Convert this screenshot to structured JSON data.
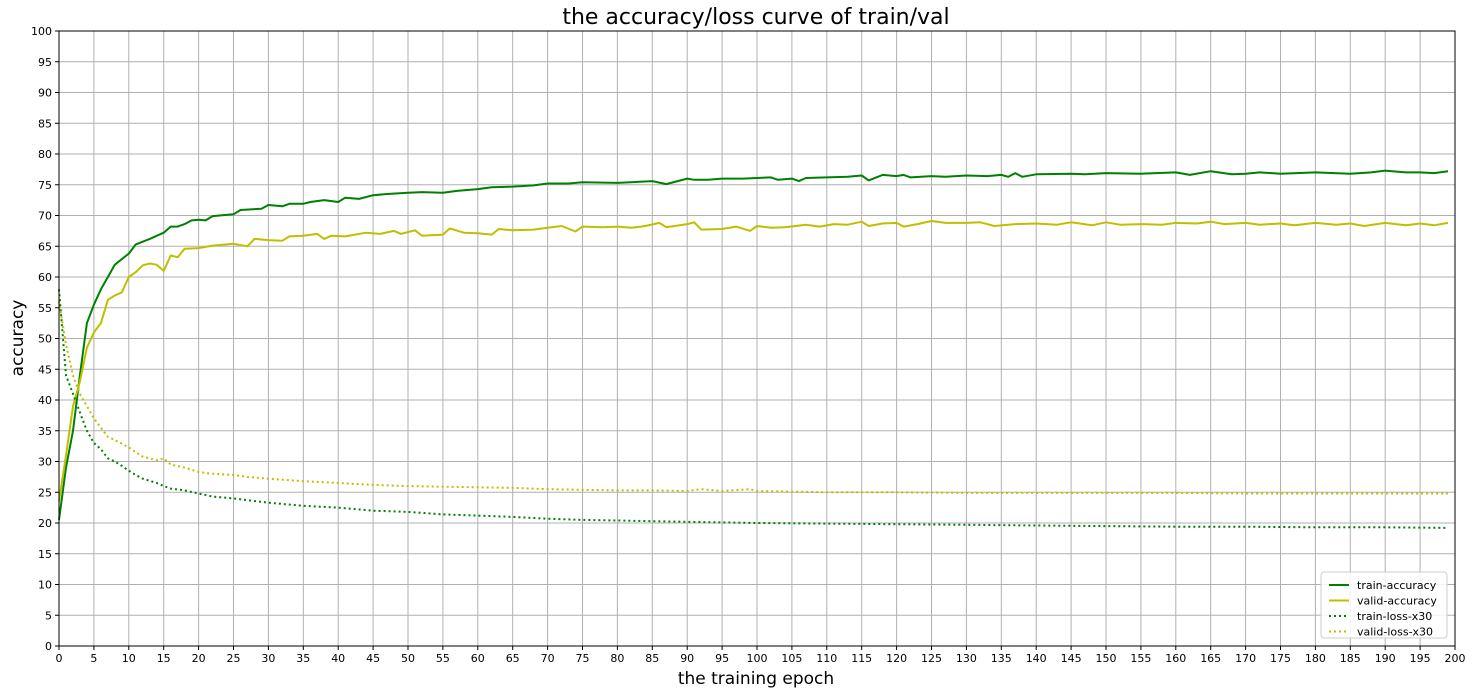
{
  "chart_data": {
    "type": "line",
    "title": "the accuracy/loss curve of train/val",
    "xlabel": "the training epoch",
    "ylabel": "accuracy",
    "xlim": [
      0,
      200
    ],
    "ylim": [
      0,
      100
    ],
    "xticks": [
      0,
      5,
      10,
      15,
      20,
      25,
      30,
      35,
      40,
      45,
      50,
      55,
      60,
      65,
      70,
      75,
      80,
      85,
      90,
      95,
      100,
      105,
      110,
      115,
      120,
      125,
      130,
      135,
      140,
      145,
      150,
      155,
      160,
      165,
      170,
      175,
      180,
      185,
      190,
      195,
      200
    ],
    "yticks": [
      0,
      5,
      10,
      15,
      20,
      25,
      30,
      35,
      40,
      45,
      50,
      55,
      60,
      65,
      70,
      75,
      80,
      85,
      90,
      95,
      100
    ],
    "grid": true,
    "legend_position": "lower right",
    "series": [
      {
        "name": "train-accuracy",
        "color": "#008000",
        "style": "solid",
        "points": [
          [
            0,
            20.5
          ],
          [
            1,
            29
          ],
          [
            2,
            35
          ],
          [
            3,
            44
          ],
          [
            4,
            52.5
          ],
          [
            5,
            55.5
          ],
          [
            6,
            58
          ],
          [
            7,
            60
          ],
          [
            8,
            62
          ],
          [
            10,
            63.8
          ],
          [
            11,
            65.3
          ],
          [
            13,
            66.2
          ],
          [
            15,
            67.2
          ],
          [
            16,
            68.2
          ],
          [
            17,
            68.2
          ],
          [
            18,
            68.6
          ],
          [
            19,
            69.2
          ],
          [
            20,
            69.3
          ],
          [
            21,
            69.2
          ],
          [
            22,
            69.9
          ],
          [
            25,
            70.2
          ],
          [
            26,
            70.9
          ],
          [
            29,
            71.1
          ],
          [
            30,
            71.7
          ],
          [
            32,
            71.5
          ],
          [
            33,
            71.9
          ],
          [
            35,
            71.9
          ],
          [
            36,
            72.2
          ],
          [
            38,
            72.5
          ],
          [
            40,
            72.2
          ],
          [
            41,
            72.9
          ],
          [
            43,
            72.7
          ],
          [
            45,
            73.3
          ],
          [
            47,
            73.5
          ],
          [
            50,
            73.7
          ],
          [
            52,
            73.8
          ],
          [
            55,
            73.7
          ],
          [
            57,
            74
          ],
          [
            60,
            74.3
          ],
          [
            62,
            74.6
          ],
          [
            65,
            74.7
          ],
          [
            68,
            74.9
          ],
          [
            70,
            75.2
          ],
          [
            73,
            75.2
          ],
          [
            75,
            75.4
          ],
          [
            80,
            75.3
          ],
          [
            85,
            75.6
          ],
          [
            87,
            75.1
          ],
          [
            90,
            76
          ],
          [
            91,
            75.8
          ],
          [
            93,
            75.8
          ],
          [
            95,
            76
          ],
          [
            98,
            76
          ],
          [
            100,
            76.1
          ],
          [
            102,
            76.2
          ],
          [
            103,
            75.8
          ],
          [
            105,
            76
          ],
          [
            106,
            75.6
          ],
          [
            107,
            76.1
          ],
          [
            110,
            76.2
          ],
          [
            113,
            76.3
          ],
          [
            115,
            76.5
          ],
          [
            116,
            75.7
          ],
          [
            118,
            76.6
          ],
          [
            120,
            76.4
          ],
          [
            121,
            76.6
          ],
          [
            122,
            76.2
          ],
          [
            125,
            76.4
          ],
          [
            127,
            76.3
          ],
          [
            130,
            76.5
          ],
          [
            133,
            76.4
          ],
          [
            135,
            76.6
          ],
          [
            136,
            76.3
          ],
          [
            137,
            76.9
          ],
          [
            138,
            76.3
          ],
          [
            140,
            76.7
          ],
          [
            145,
            76.8
          ],
          [
            147,
            76.7
          ],
          [
            150,
            76.9
          ],
          [
            155,
            76.8
          ],
          [
            160,
            77
          ],
          [
            162,
            76.6
          ],
          [
            165,
            77.2
          ],
          [
            168,
            76.7
          ],
          [
            170,
            76.8
          ],
          [
            172,
            77
          ],
          [
            175,
            76.8
          ],
          [
            180,
            77
          ],
          [
            185,
            76.8
          ],
          [
            188,
            77
          ],
          [
            190,
            77.3
          ],
          [
            193,
            77
          ],
          [
            195,
            77
          ],
          [
            197,
            76.9
          ],
          [
            199,
            77.2
          ]
        ]
      },
      {
        "name": "valid-accuracy",
        "color": "#bfbf00",
        "style": "solid",
        "points": [
          [
            0,
            23.5
          ],
          [
            1,
            31
          ],
          [
            2,
            39
          ],
          [
            3,
            43
          ],
          [
            4,
            48.5
          ],
          [
            5,
            51
          ],
          [
            6,
            52.5
          ],
          [
            7,
            56.3
          ],
          [
            8,
            57
          ],
          [
            9,
            57.5
          ],
          [
            10,
            60
          ],
          [
            11,
            60.8
          ],
          [
            12,
            61.9
          ],
          [
            13,
            62.2
          ],
          [
            14,
            62
          ],
          [
            15,
            61
          ],
          [
            16,
            63.5
          ],
          [
            17,
            63.2
          ],
          [
            18,
            64.6
          ],
          [
            20,
            64.7
          ],
          [
            22,
            65.1
          ],
          [
            24,
            65.3
          ],
          [
            25,
            65.4
          ],
          [
            27,
            65
          ],
          [
            28,
            66.2
          ],
          [
            30,
            66
          ],
          [
            32,
            65.9
          ],
          [
            33,
            66.6
          ],
          [
            35,
            66.7
          ],
          [
            37,
            67
          ],
          [
            38,
            66.2
          ],
          [
            39,
            66.7
          ],
          [
            41,
            66.6
          ],
          [
            44,
            67.2
          ],
          [
            46,
            67
          ],
          [
            48,
            67.5
          ],
          [
            49,
            67
          ],
          [
            51,
            67.6
          ],
          [
            52,
            66.7
          ],
          [
            55,
            66.9
          ],
          [
            56,
            67.9
          ],
          [
            58,
            67.2
          ],
          [
            60,
            67.1
          ],
          [
            62,
            66.9
          ],
          [
            63,
            67.8
          ],
          [
            65,
            67.6
          ],
          [
            68,
            67.7
          ],
          [
            70,
            68
          ],
          [
            72,
            68.3
          ],
          [
            74,
            67.4
          ],
          [
            75,
            68.2
          ],
          [
            78,
            68.1
          ],
          [
            80,
            68.2
          ],
          [
            82,
            68
          ],
          [
            84,
            68.3
          ],
          [
            86,
            68.8
          ],
          [
            87,
            68.1
          ],
          [
            90,
            68.6
          ],
          [
            91,
            68.9
          ],
          [
            92,
            67.7
          ],
          [
            95,
            67.8
          ],
          [
            97,
            68.2
          ],
          [
            99,
            67.5
          ],
          [
            100,
            68.3
          ],
          [
            102,
            68
          ],
          [
            104,
            68.1
          ],
          [
            107,
            68.5
          ],
          [
            109,
            68.2
          ],
          [
            111,
            68.6
          ],
          [
            113,
            68.5
          ],
          [
            115,
            69
          ],
          [
            116,
            68.3
          ],
          [
            118,
            68.7
          ],
          [
            120,
            68.8
          ],
          [
            121,
            68.2
          ],
          [
            123,
            68.6
          ],
          [
            125,
            69.1
          ],
          [
            127,
            68.8
          ],
          [
            130,
            68.8
          ],
          [
            132,
            68.9
          ],
          [
            134,
            68.3
          ],
          [
            137,
            68.6
          ],
          [
            140,
            68.7
          ],
          [
            143,
            68.5
          ],
          [
            145,
            68.9
          ],
          [
            148,
            68.4
          ],
          [
            150,
            68.9
          ],
          [
            152,
            68.5
          ],
          [
            155,
            68.6
          ],
          [
            158,
            68.5
          ],
          [
            160,
            68.8
          ],
          [
            163,
            68.7
          ],
          [
            165,
            69
          ],
          [
            167,
            68.6
          ],
          [
            170,
            68.8
          ],
          [
            172,
            68.5
          ],
          [
            175,
            68.7
          ],
          [
            177,
            68.4
          ],
          [
            180,
            68.8
          ],
          [
            183,
            68.5
          ],
          [
            185,
            68.7
          ],
          [
            187,
            68.3
          ],
          [
            190,
            68.8
          ],
          [
            193,
            68.4
          ],
          [
            195,
            68.7
          ],
          [
            197,
            68.4
          ],
          [
            199,
            68.8
          ]
        ]
      },
      {
        "name": "train-loss-x30",
        "color": "#008000",
        "style": "dotted",
        "points": [
          [
            0,
            58
          ],
          [
            1,
            44
          ],
          [
            2,
            41
          ],
          [
            3,
            38
          ],
          [
            4,
            35
          ],
          [
            5,
            33
          ],
          [
            6,
            32
          ],
          [
            7,
            30.5
          ],
          [
            8,
            30
          ],
          [
            9,
            29.3
          ],
          [
            10,
            28.5
          ],
          [
            11,
            27.8
          ],
          [
            12,
            27.2
          ],
          [
            14,
            26.5
          ],
          [
            15,
            26
          ],
          [
            16,
            25.6
          ],
          [
            18,
            25.3
          ],
          [
            20,
            24.8
          ],
          [
            22,
            24.3
          ],
          [
            25,
            24
          ],
          [
            27,
            23.7
          ],
          [
            30,
            23.3
          ],
          [
            35,
            22.8
          ],
          [
            40,
            22.5
          ],
          [
            45,
            22
          ],
          [
            50,
            21.8
          ],
          [
            55,
            21.4
          ],
          [
            60,
            21.2
          ],
          [
            65,
            21
          ],
          [
            70,
            20.7
          ],
          [
            75,
            20.5
          ],
          [
            80,
            20.4
          ],
          [
            85,
            20.3
          ],
          [
            90,
            20.2
          ],
          [
            95,
            20.1
          ],
          [
            100,
            20
          ],
          [
            110,
            19.9
          ],
          [
            120,
            19.8
          ],
          [
            130,
            19.7
          ],
          [
            140,
            19.6
          ],
          [
            150,
            19.5
          ],
          [
            160,
            19.4
          ],
          [
            170,
            19.4
          ],
          [
            180,
            19.3
          ],
          [
            190,
            19.3
          ],
          [
            199,
            19.2
          ]
        ]
      },
      {
        "name": "valid-loss-x30",
        "color": "#bfbf00",
        "style": "dotted",
        "points": [
          [
            0,
            56
          ],
          [
            1,
            49
          ],
          [
            2,
            44
          ],
          [
            3,
            41
          ],
          [
            4,
            39
          ],
          [
            5,
            37
          ],
          [
            6,
            35.5
          ],
          [
            7,
            34
          ],
          [
            8,
            33.5
          ],
          [
            10,
            32.3
          ],
          [
            11,
            31.5
          ],
          [
            12,
            30.8
          ],
          [
            14,
            30.2
          ],
          [
            15,
            30.5
          ],
          [
            16,
            29.5
          ],
          [
            18,
            29
          ],
          [
            20,
            28.3
          ],
          [
            22,
            28
          ],
          [
            25,
            27.8
          ],
          [
            27,
            27.5
          ],
          [
            30,
            27.2
          ],
          [
            35,
            26.8
          ],
          [
            40,
            26.5
          ],
          [
            45,
            26.2
          ],
          [
            50,
            26
          ],
          [
            55,
            25.9
          ],
          [
            60,
            25.8
          ],
          [
            65,
            25.7
          ],
          [
            70,
            25.5
          ],
          [
            75,
            25.4
          ],
          [
            80,
            25.3
          ],
          [
            85,
            25.3
          ],
          [
            90,
            25.2
          ],
          [
            92,
            25.5
          ],
          [
            95,
            25.2
          ],
          [
            99,
            25.5
          ],
          [
            100,
            25.2
          ],
          [
            105,
            25.1
          ],
          [
            110,
            25
          ],
          [
            120,
            25
          ],
          [
            130,
            24.9
          ],
          [
            140,
            24.9
          ],
          [
            150,
            24.9
          ],
          [
            160,
            24.9
          ],
          [
            170,
            24.8
          ],
          [
            180,
            24.8
          ],
          [
            190,
            24.8
          ],
          [
            199,
            24.8
          ]
        ]
      }
    ]
  }
}
